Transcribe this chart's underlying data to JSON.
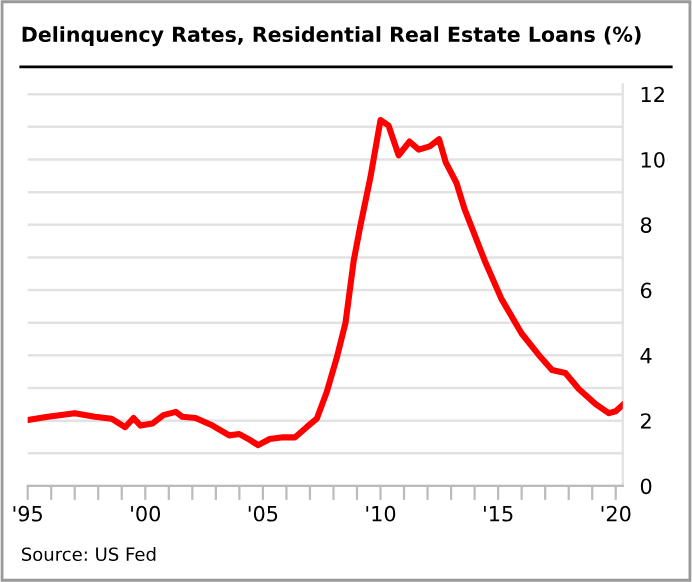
{
  "chart_data": {
    "type": "line",
    "title": "Delinquency Rates, Residential Real Estate Loans (%)",
    "annotations": [
      "Source: US Fed"
    ],
    "series": [
      {
        "color": "#ff0000",
        "x": [
          1995.0,
          1995.86,
          1997.0,
          1997.86,
          1998.57,
          1999.14,
          1999.5,
          1999.8,
          2000.3,
          2000.77,
          2001.3,
          2001.57,
          2002.14,
          2002.86,
          2003.57,
          2004.0,
          2004.43,
          2004.8,
          2005.29,
          2005.86,
          2006.37,
          2006.86,
          2007.29,
          2007.71,
          2008.14,
          2008.51,
          2008.86,
          2009.14,
          2009.57,
          2010.0,
          2010.34,
          2010.77,
          2011.23,
          2011.63,
          2012.09,
          2012.49,
          2012.77,
          2013.23,
          2013.57,
          2014.43,
          2015.14,
          2016.0,
          2016.71,
          2017.29,
          2017.86,
          2018.43,
          2019.14,
          2019.71,
          2020.0,
          2020.29
        ],
        "values": [
          2.02,
          2.12,
          2.23,
          2.12,
          2.06,
          1.8,
          2.08,
          1.85,
          1.91,
          2.17,
          2.27,
          2.12,
          2.08,
          1.85,
          1.55,
          1.59,
          1.42,
          1.25,
          1.44,
          1.49,
          1.49,
          1.8,
          2.06,
          2.87,
          3.93,
          4.99,
          6.9,
          7.96,
          9.45,
          11.21,
          11.04,
          10.13,
          10.55,
          10.3,
          10.4,
          10.62,
          9.92,
          9.28,
          8.49,
          6.9,
          5.73,
          4.67,
          4.03,
          3.55,
          3.46,
          2.97,
          2.51,
          2.23,
          2.29,
          2.48
        ]
      }
    ],
    "xlim": [
      1995,
      2020.3
    ],
    "xticks": [
      {
        "value": 1995,
        "label": "'95"
      },
      {
        "value": 1996,
        "label": null
      },
      {
        "value": 1997,
        "label": null
      },
      {
        "value": 1998,
        "label": null
      },
      {
        "value": 1999,
        "label": null
      },
      {
        "value": 2000,
        "label": "'00"
      },
      {
        "value": 2001,
        "label": null
      },
      {
        "value": 2002,
        "label": null
      },
      {
        "value": 2003,
        "label": null
      },
      {
        "value": 2004,
        "label": null
      },
      {
        "value": 2005,
        "label": "'05"
      },
      {
        "value": 2006,
        "label": null
      },
      {
        "value": 2007,
        "label": null
      },
      {
        "value": 2008,
        "label": null
      },
      {
        "value": 2009,
        "label": null
      },
      {
        "value": 2010,
        "label": "'10"
      },
      {
        "value": 2011,
        "label": null
      },
      {
        "value": 2012,
        "label": null
      },
      {
        "value": 2013,
        "label": null
      },
      {
        "value": 2014,
        "label": null
      },
      {
        "value": 2015,
        "label": "'15"
      },
      {
        "value": 2016,
        "label": null
      },
      {
        "value": 2017,
        "label": null
      },
      {
        "value": 2018,
        "label": null
      },
      {
        "value": 2019,
        "label": null
      },
      {
        "value": 2020,
        "label": "'20"
      }
    ],
    "ylim": [
      0,
      12.3
    ],
    "yticks": [
      0,
      {
        "value": 1,
        "label": null
      },
      2,
      {
        "value": 3,
        "label": null
      },
      4,
      {
        "value": 5,
        "label": null
      },
      6,
      {
        "value": 7,
        "label": null
      },
      8,
      {
        "value": 9,
        "label": null
      },
      10,
      {
        "value": 11,
        "label": null
      },
      12
    ],
    "grid": "y",
    "line_style": "solid",
    "marker": "none"
  }
}
